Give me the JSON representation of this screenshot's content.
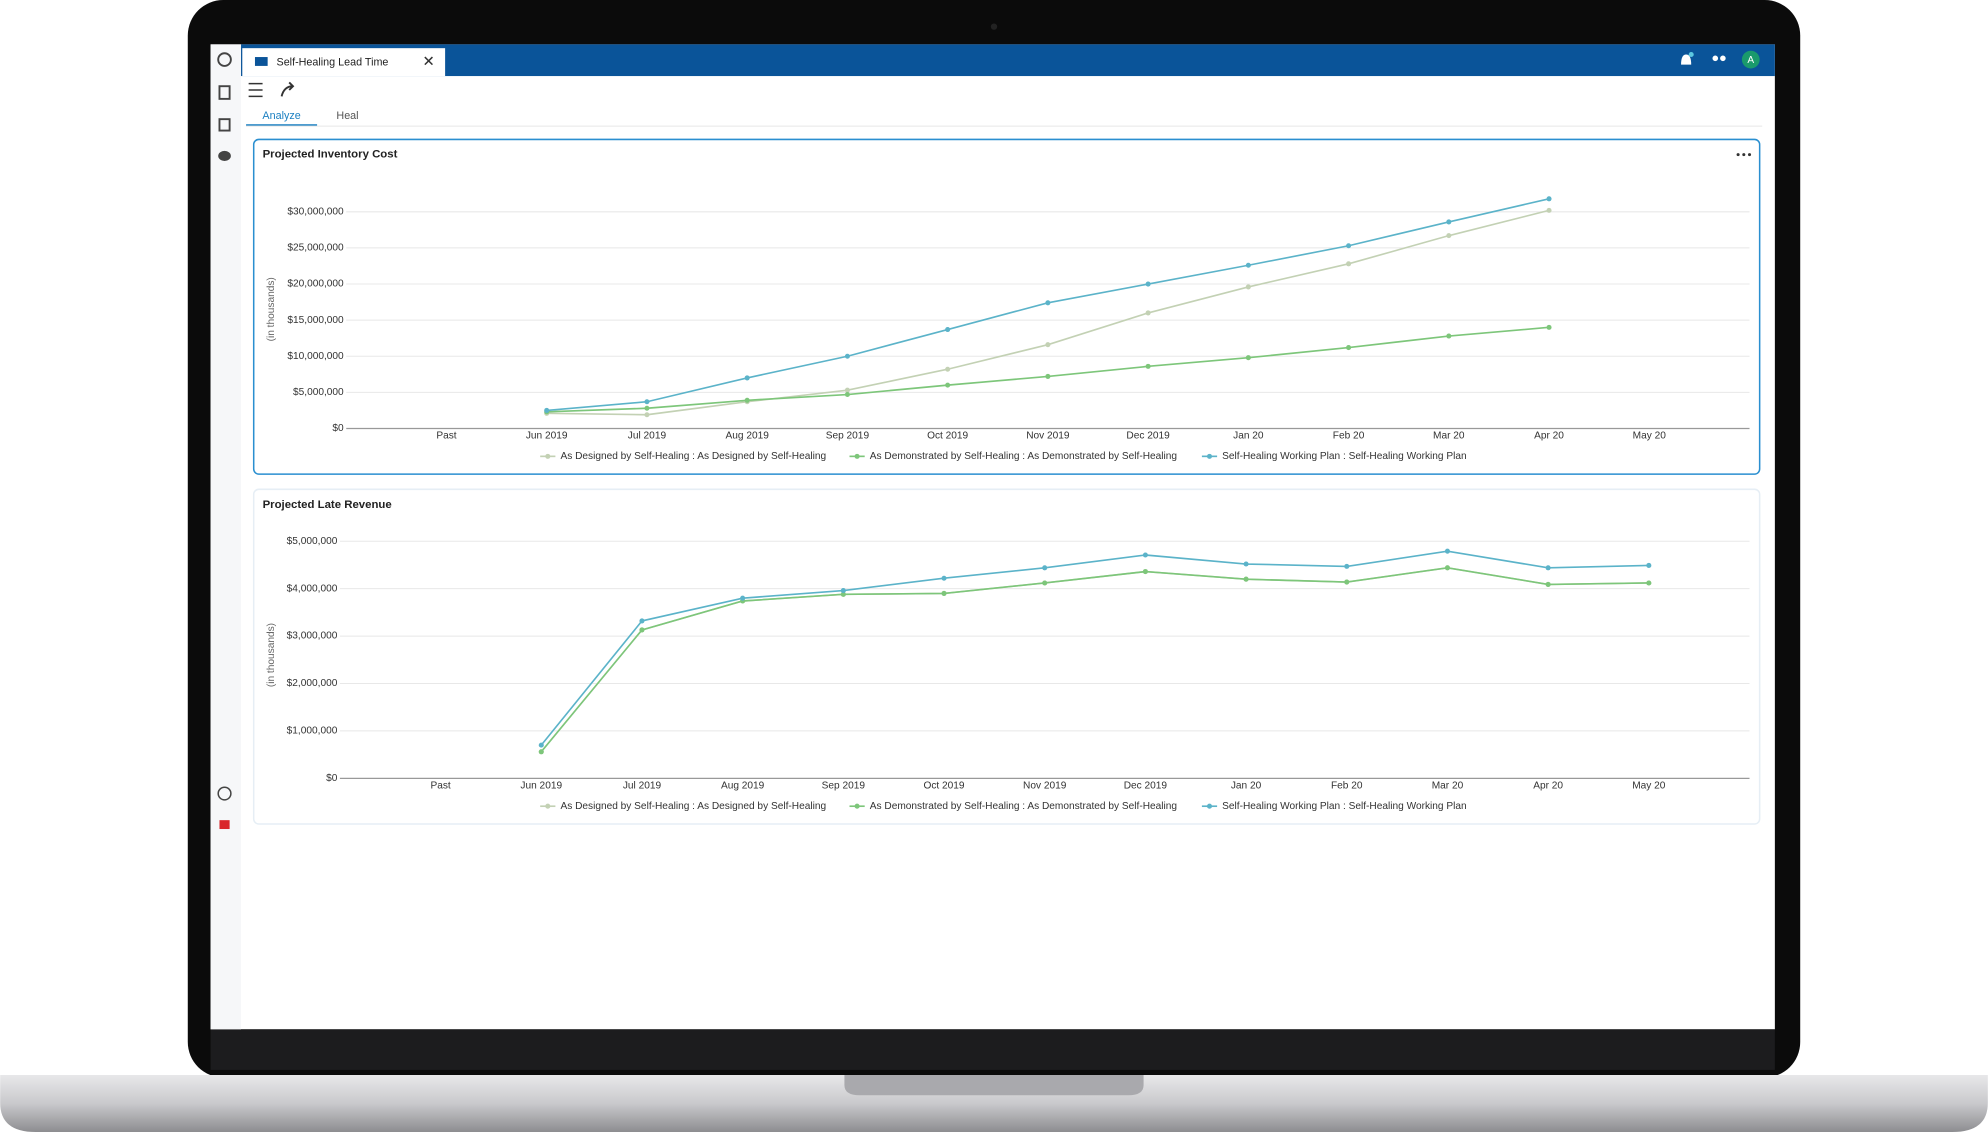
{
  "tab": {
    "title": "Self-Healing Lead Time"
  },
  "tabs": [
    "Analyze",
    "Heal"
  ],
  "avatar": "A",
  "chart_data": [
    {
      "type": "line",
      "title": "Projected Inventory Cost",
      "y_label": "(in thousands)",
      "categories": [
        "Past",
        "Jun 2019",
        "Jul 2019",
        "Aug 2019",
        "Sep 2019",
        "Oct 2019",
        "Nov 2019",
        "Dec 2019",
        "Jan 20",
        "Feb 20",
        "Mar 20",
        "Apr 20",
        "May 20"
      ],
      "series": [
        {
          "name": "As Designed by Self-Healing : As Designed by Self-Healing",
          "color": "#c3d1b4",
          "values": [
            null,
            2100000,
            1900000,
            3700000,
            5300000,
            8200000,
            11600000,
            16000000,
            19600000,
            22800000,
            26700000,
            30200000,
            null
          ]
        },
        {
          "name": "As Demonstrated by Self-Healing : As Demonstrated by Self-Healing",
          "color": "#7dc67a",
          "values": [
            null,
            2300000,
            2800000,
            3900000,
            4700000,
            6000000,
            7200000,
            8600000,
            9800000,
            11200000,
            12800000,
            14000000,
            null
          ]
        },
        {
          "name": "Self-Healing Working Plan : Self-Healing Working Plan",
          "color": "#5bb3c9",
          "values": [
            null,
            2500000,
            3700000,
            7000000,
            10000000,
            13700000,
            17400000,
            20000000,
            22600000,
            25300000,
            28600000,
            31800000,
            null
          ]
        }
      ],
      "ylim": [
        0,
        33000000
      ],
      "yticks": [
        {
          "value": 0,
          "label": "$0"
        },
        {
          "value": 5000000,
          "label": "$5,000,000"
        },
        {
          "value": 10000000,
          "label": "$10,000,000"
        },
        {
          "value": 15000000,
          "label": "$15,000,000"
        },
        {
          "value": 20000000,
          "label": "$20,000,000"
        },
        {
          "value": 25000000,
          "label": "$25,000,000"
        },
        {
          "value": 30000000,
          "label": "$30,000,000"
        }
      ],
      "grid": true,
      "legend": "bottom"
    },
    {
      "type": "line",
      "title": "Projected Late Revenue",
      "y_label": "(in thousands)",
      "categories": [
        "Past",
        "Jun 2019",
        "Jul 2019",
        "Aug 2019",
        "Sep 2019",
        "Oct 2019",
        "Nov 2019",
        "Dec 2019",
        "Jan 20",
        "Feb 20",
        "Mar 20",
        "Apr 20",
        "May 20"
      ],
      "series": [
        {
          "name": "As Designed by Self-Healing : As Designed by Self-Healing",
          "color": "#c3d1b4",
          "values": [
            null,
            560000,
            3130000,
            3740000,
            3880000,
            3900000,
            4120000,
            4360000,
            4200000,
            4140000,
            4440000,
            4090000,
            4120000
          ]
        },
        {
          "name": "As Demonstrated by Self-Healing : As Demonstrated by Self-Healing",
          "color": "#7dc67a",
          "values": [
            null,
            560000,
            3130000,
            3740000,
            3880000,
            3900000,
            4120000,
            4360000,
            4200000,
            4140000,
            4440000,
            4090000,
            4120000
          ]
        },
        {
          "name": "Self-Healing Working Plan : Self-Healing Working Plan",
          "color": "#5bb3c9",
          "values": [
            null,
            700000,
            3320000,
            3800000,
            3960000,
            4220000,
            4440000,
            4710000,
            4520000,
            4470000,
            4790000,
            4440000,
            4490000
          ]
        }
      ],
      "ylim": [
        0,
        5200000
      ],
      "yticks": [
        {
          "value": 0,
          "label": "$0"
        },
        {
          "value": 1000000,
          "label": "$1,000,000"
        },
        {
          "value": 2000000,
          "label": "$2,000,000"
        },
        {
          "value": 3000000,
          "label": "$3,000,000"
        },
        {
          "value": 4000000,
          "label": "$4,000,000"
        },
        {
          "value": 5000000,
          "label": "$5,000,000"
        }
      ],
      "grid": true,
      "legend": "bottom"
    }
  ]
}
